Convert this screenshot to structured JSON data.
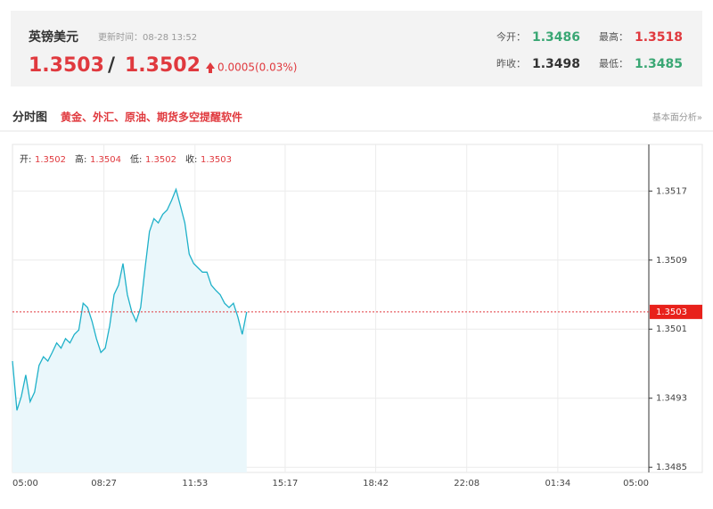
{
  "header": {
    "name": "英镑美元",
    "update": "更新时间：08-28 13:52",
    "price": "1.3503",
    "separator": "/",
    "price2": "1.3502",
    "change": "0.0005(0.03%)",
    "stats": [
      {
        "label": "今开：",
        "value": "1.3486"
      },
      {
        "label": "最高：",
        "value": "1.3518"
      },
      {
        "label": "昨收：",
        "value": "1.3498"
      },
      {
        "label": "最低：",
        "value": "1.3485"
      }
    ]
  },
  "section": {
    "title": "分时图",
    "promo": "黄金、外汇、原油、期货多空提醒软件",
    "link": "基本面分析»"
  },
  "chart_data": {
    "type": "line",
    "color": "#1fb1c9",
    "x": [
      "05:00",
      "05:10",
      "05:20",
      "05:30",
      "05:40",
      "05:50",
      "06:00",
      "06:10",
      "06:20",
      "06:30",
      "06:40",
      "06:50",
      "07:00",
      "07:10",
      "07:20",
      "07:30",
      "07:40",
      "07:50",
      "08:00",
      "08:10",
      "08:20",
      "08:30",
      "08:40",
      "08:50",
      "09:00",
      "09:10",
      "09:20",
      "09:30",
      "09:40",
      "09:50",
      "10:00",
      "10:10",
      "10:20",
      "10:30",
      "10:40",
      "10:50",
      "11:00",
      "11:10",
      "11:20",
      "11:30",
      "11:40",
      "11:50",
      "12:00",
      "12:10",
      "12:20",
      "12:30",
      "12:40",
      "12:50",
      "13:00",
      "13:10",
      "13:20",
      "13:30",
      "13:40",
      "13:50"
    ],
    "values": [
      1.34973,
      1.34916,
      1.34932,
      1.34957,
      1.34926,
      1.34937,
      1.34968,
      1.34978,
      1.34973,
      1.34983,
      1.34994,
      1.34988,
      1.34999,
      1.34994,
      1.35004,
      1.35009,
      1.3504,
      1.35035,
      1.35019,
      1.34999,
      1.34983,
      1.34988,
      1.35014,
      1.3505,
      1.35061,
      1.35086,
      1.3505,
      1.3503,
      1.35019,
      1.35035,
      1.35081,
      1.35123,
      1.35138,
      1.35133,
      1.35143,
      1.35148,
      1.35159,
      1.35172,
      1.35153,
      1.35133,
      1.35097,
      1.35086,
      1.35081,
      1.35076,
      1.35076,
      1.35061,
      1.35055,
      1.3505,
      1.3504,
      1.35035,
      1.3504,
      1.35024,
      1.35004,
      1.3503
    ],
    "ylim": [
      1.34844,
      1.35224
    ],
    "yticks": [
      1.3485,
      1.3493,
      1.3501,
      1.3509,
      1.3517
    ],
    "xticks": [
      "05:00",
      "08:27",
      "11:53",
      "15:17",
      "18:42",
      "22:08",
      "01:34",
      "05:00"
    ],
    "grid": true,
    "last_price": 1.3503,
    "ohlc": [
      {
        "label": "开:",
        "value": 1.3502
      },
      {
        "label": "高:",
        "value": 1.3504
      },
      {
        "label": "低:",
        "value": 1.3502
      },
      {
        "label": "收:",
        "value": 1.3503
      }
    ]
  }
}
